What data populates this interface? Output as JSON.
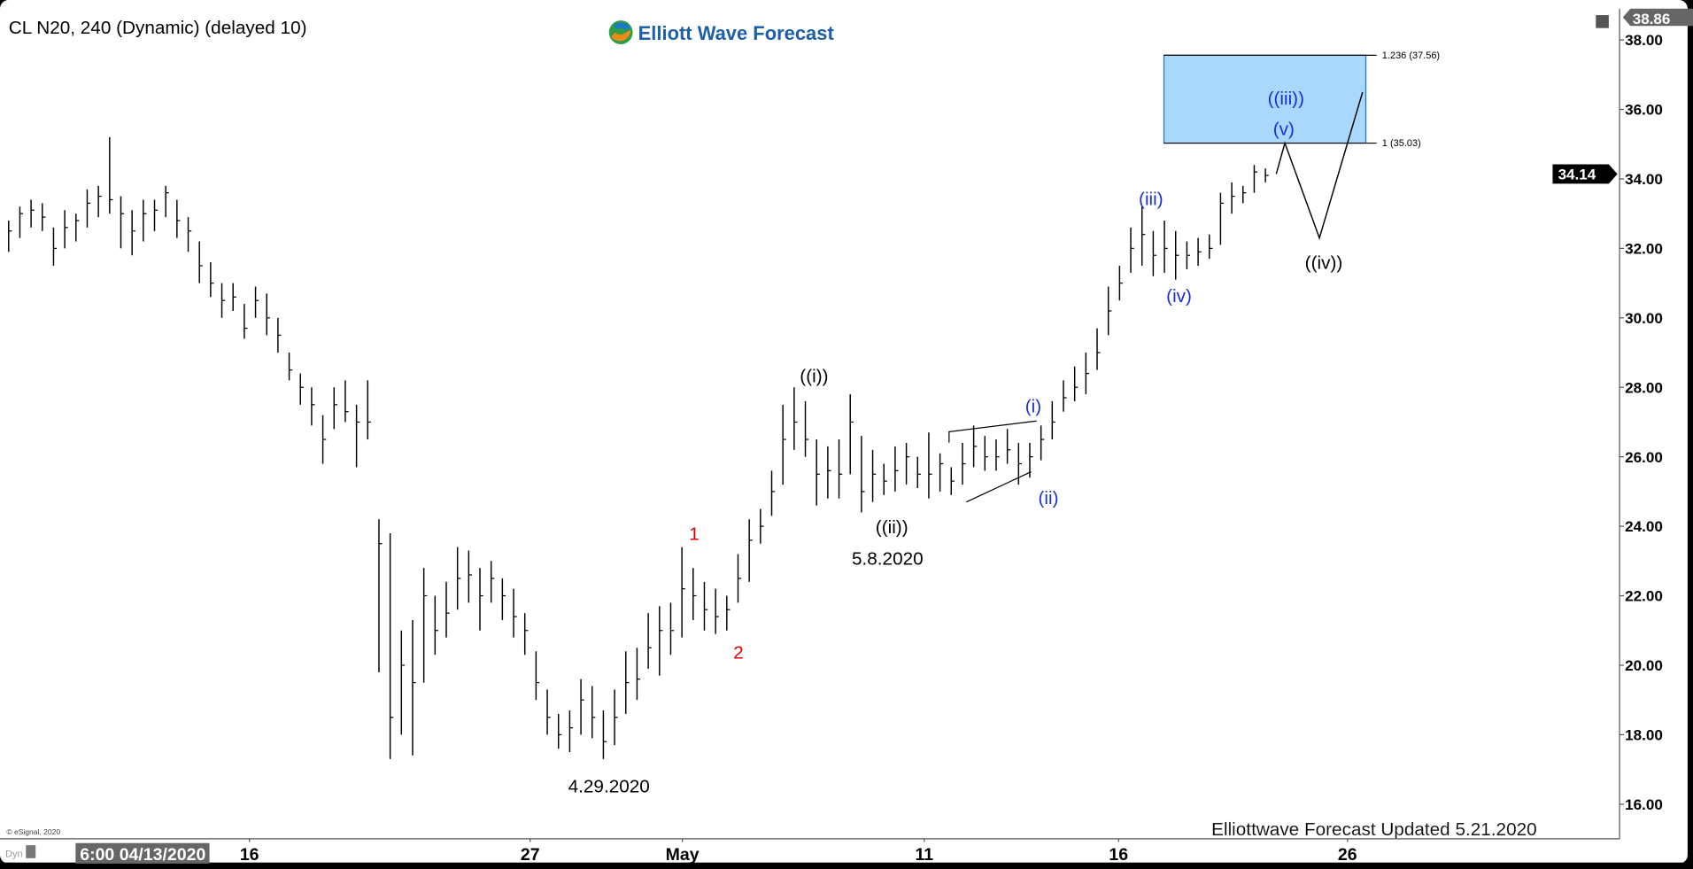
{
  "header": {
    "title": "CL N20, 240 (Dynamic) (delayed 10)",
    "logo_text": "Elliott Wave Forecast"
  },
  "footer": {
    "copyright": "© eSignal, 2020",
    "updated": "Elliottwave Forecast Updated 5.21.2020",
    "dyn_label": "Dyn",
    "cursor_time": "6:00 04/13/2020"
  },
  "colors": {
    "bar": "#000000",
    "box_fill": "#a8d8fb",
    "box_stroke": "#1e6fd0",
    "blue_label": "#1a2fd0",
    "red_label": "#e00000",
    "black_label": "#000000"
  },
  "chart_data": {
    "type": "ohlc",
    "symbol": "CL N20",
    "interval": "240",
    "ylim": [
      15,
      38.86
    ],
    "y_ticks": [
      "38.00",
      "36.00",
      "34.00",
      "32.00",
      "30.00",
      "28.00",
      "26.00",
      "24.00",
      "22.00",
      "20.00",
      "18.00",
      "16.00"
    ],
    "x_ticks": [
      "16",
      "27",
      "May",
      "11",
      "16",
      "26"
    ],
    "high_marker": "38.86",
    "last_price": "34.14",
    "bars_format": [
      "low",
      "high",
      "close"
    ],
    "bars": [
      [
        31.9,
        32.8,
        32.5
      ],
      [
        32.3,
        33.2,
        33
      ],
      [
        32.6,
        33.4,
        33.1
      ],
      [
        32.5,
        33.3,
        32.9
      ],
      [
        31.5,
        32.6,
        32
      ],
      [
        32,
        33.1,
        32.6
      ],
      [
        32.2,
        33,
        32.8
      ],
      [
        32.6,
        33.7,
        33.3
      ],
      [
        32.9,
        33.8,
        33.5
      ],
      [
        33,
        35.2,
        33.4
      ],
      [
        32,
        33.5,
        33
      ],
      [
        31.8,
        33.1,
        32.5
      ],
      [
        32.2,
        33.4,
        33
      ],
      [
        32.5,
        33.4,
        33.1
      ],
      [
        32.9,
        33.8,
        33.6
      ],
      [
        32.3,
        33.4,
        32.8
      ],
      [
        31.9,
        32.9,
        32.5
      ],
      [
        31,
        32.2,
        31.5
      ],
      [
        30.6,
        31.6,
        31
      ],
      [
        30,
        31,
        30.5
      ],
      [
        30.2,
        31,
        30.6
      ],
      [
        29.4,
        30.4,
        29.7
      ],
      [
        30,
        30.9,
        30.5
      ],
      [
        29.5,
        30.7,
        30
      ],
      [
        29,
        30,
        29.5
      ],
      [
        28.2,
        29,
        28.5
      ],
      [
        27.5,
        28.4,
        28
      ],
      [
        26.9,
        28,
        27.5
      ],
      [
        25.8,
        27.2,
        26.5
      ],
      [
        26.8,
        28,
        27.5
      ],
      [
        27,
        28.2,
        27.3
      ],
      [
        25.7,
        27.5,
        27
      ],
      [
        26.5,
        28.2,
        27
      ],
      [
        19.8,
        24.2,
        23.5
      ],
      [
        17.3,
        23.8,
        18.5
      ],
      [
        18,
        21,
        20
      ],
      [
        17.4,
        21.3,
        19.5
      ],
      [
        19.5,
        22.8,
        22
      ],
      [
        20.3,
        22,
        21
      ],
      [
        20.8,
        22.4,
        21.5
      ],
      [
        21.6,
        23.4,
        22.5
      ],
      [
        21.8,
        23.3,
        22.6
      ],
      [
        21,
        22.8,
        22
      ],
      [
        21.8,
        23,
        22.5
      ],
      [
        21.3,
        22.5,
        22
      ],
      [
        20.8,
        22.2,
        21.4
      ],
      [
        20.3,
        21.5,
        21
      ],
      [
        19,
        20.4,
        19.5
      ],
      [
        18,
        19.3,
        18.5
      ],
      [
        17.6,
        18.6,
        18
      ],
      [
        17.5,
        18.7,
        18.2
      ],
      [
        18,
        19.6,
        19
      ],
      [
        17.9,
        19.4,
        18.5
      ],
      [
        17.3,
        18.7,
        17.8
      ],
      [
        17.7,
        19.3,
        18.5
      ],
      [
        18.6,
        20.4,
        19.5
      ],
      [
        19,
        20.5,
        19.6
      ],
      [
        19.9,
        21.5,
        20.5
      ],
      [
        19.7,
        21.7,
        21
      ],
      [
        20.3,
        21.8,
        21
      ],
      [
        20.8,
        23.4,
        22.2
      ],
      [
        21.3,
        22.8,
        22
      ],
      [
        21,
        22.4,
        21.6
      ],
      [
        20.9,
        22.2,
        21.4
      ],
      [
        21,
        22,
        21.6
      ],
      [
        21.8,
        23.2,
        22.5
      ],
      [
        22.4,
        24.2,
        23.6
      ],
      [
        23.5,
        24.5,
        24
      ],
      [
        24.3,
        25.6,
        25
      ],
      [
        25.2,
        27.5,
        26.5
      ],
      [
        26.2,
        28,
        27
      ],
      [
        26,
        27.6,
        26.5
      ],
      [
        24.6,
        26.5,
        25.5
      ],
      [
        24.8,
        26.3,
        25.6
      ],
      [
        24.8,
        26.5,
        25.5
      ],
      [
        25.5,
        27.8,
        27
      ],
      [
        24.4,
        26.6,
        25
      ],
      [
        24.7,
        26.2,
        25.5
      ],
      [
        24.9,
        25.8,
        25.3
      ],
      [
        25,
        26.3,
        25.6
      ],
      [
        25.2,
        26.4,
        26
      ],
      [
        25.1,
        26,
        25.5
      ],
      [
        24.8,
        26.7,
        25.5
      ],
      [
        25,
        26.1,
        25.8
      ],
      [
        24.9,
        25.7,
        25.3
      ],
      [
        25.2,
        26.4,
        25.8
      ],
      [
        25.7,
        26.9,
        26.3
      ],
      [
        25.6,
        26.6,
        26
      ],
      [
        25.6,
        26.5,
        26
      ],
      [
        25.8,
        26.8,
        26.2
      ],
      [
        25.2,
        26.4,
        25.8
      ],
      [
        25.4,
        26.4,
        26
      ],
      [
        25.9,
        26.9,
        26.5
      ],
      [
        26.5,
        27.6,
        27
      ],
      [
        27.3,
        28.2,
        27.7
      ],
      [
        27.6,
        28.6,
        28
      ],
      [
        27.8,
        29,
        28.4
      ],
      [
        28.5,
        29.7,
        29
      ],
      [
        29.5,
        30.9,
        30.2
      ],
      [
        30.5,
        31.5,
        31
      ],
      [
        31.3,
        32.6,
        32
      ],
      [
        31.5,
        33.2,
        32.4
      ],
      [
        31.2,
        32.5,
        31.8
      ],
      [
        31.3,
        32.8,
        32
      ],
      [
        31.1,
        32.5,
        31.8
      ],
      [
        31.4,
        32.2,
        31.8
      ],
      [
        31.5,
        32.3,
        31.9
      ],
      [
        31.7,
        32.4,
        32
      ],
      [
        32.1,
        33.6,
        33.3
      ],
      [
        33,
        33.9,
        33.5
      ],
      [
        33.3,
        33.8,
        33.6
      ],
      [
        33.6,
        34.4,
        34.2
      ],
      [
        33.9,
        34.3,
        34.1
      ]
    ],
    "target_box": {
      "low": 35.03,
      "high": 37.56,
      "labels": [
        "1.236 (37.56)",
        "1 (35.03)"
      ]
    },
    "projection_path": [
      34.14,
      35.03,
      32.3,
      36.5
    ],
    "annotations": {
      "w1": "1",
      "w2": "2",
      "low_date": "4.29.2020",
      "wi_major": "((i))",
      "wii_major": "((ii))",
      "wii_date": "5.8.2020",
      "wi": "(i)",
      "wii": "(ii)",
      "wiii": "(iii)",
      "wiv": "(iv)",
      "wv": "(v)",
      "wiii_major": "((iii))",
      "wiv_major": "((iv))"
    }
  }
}
